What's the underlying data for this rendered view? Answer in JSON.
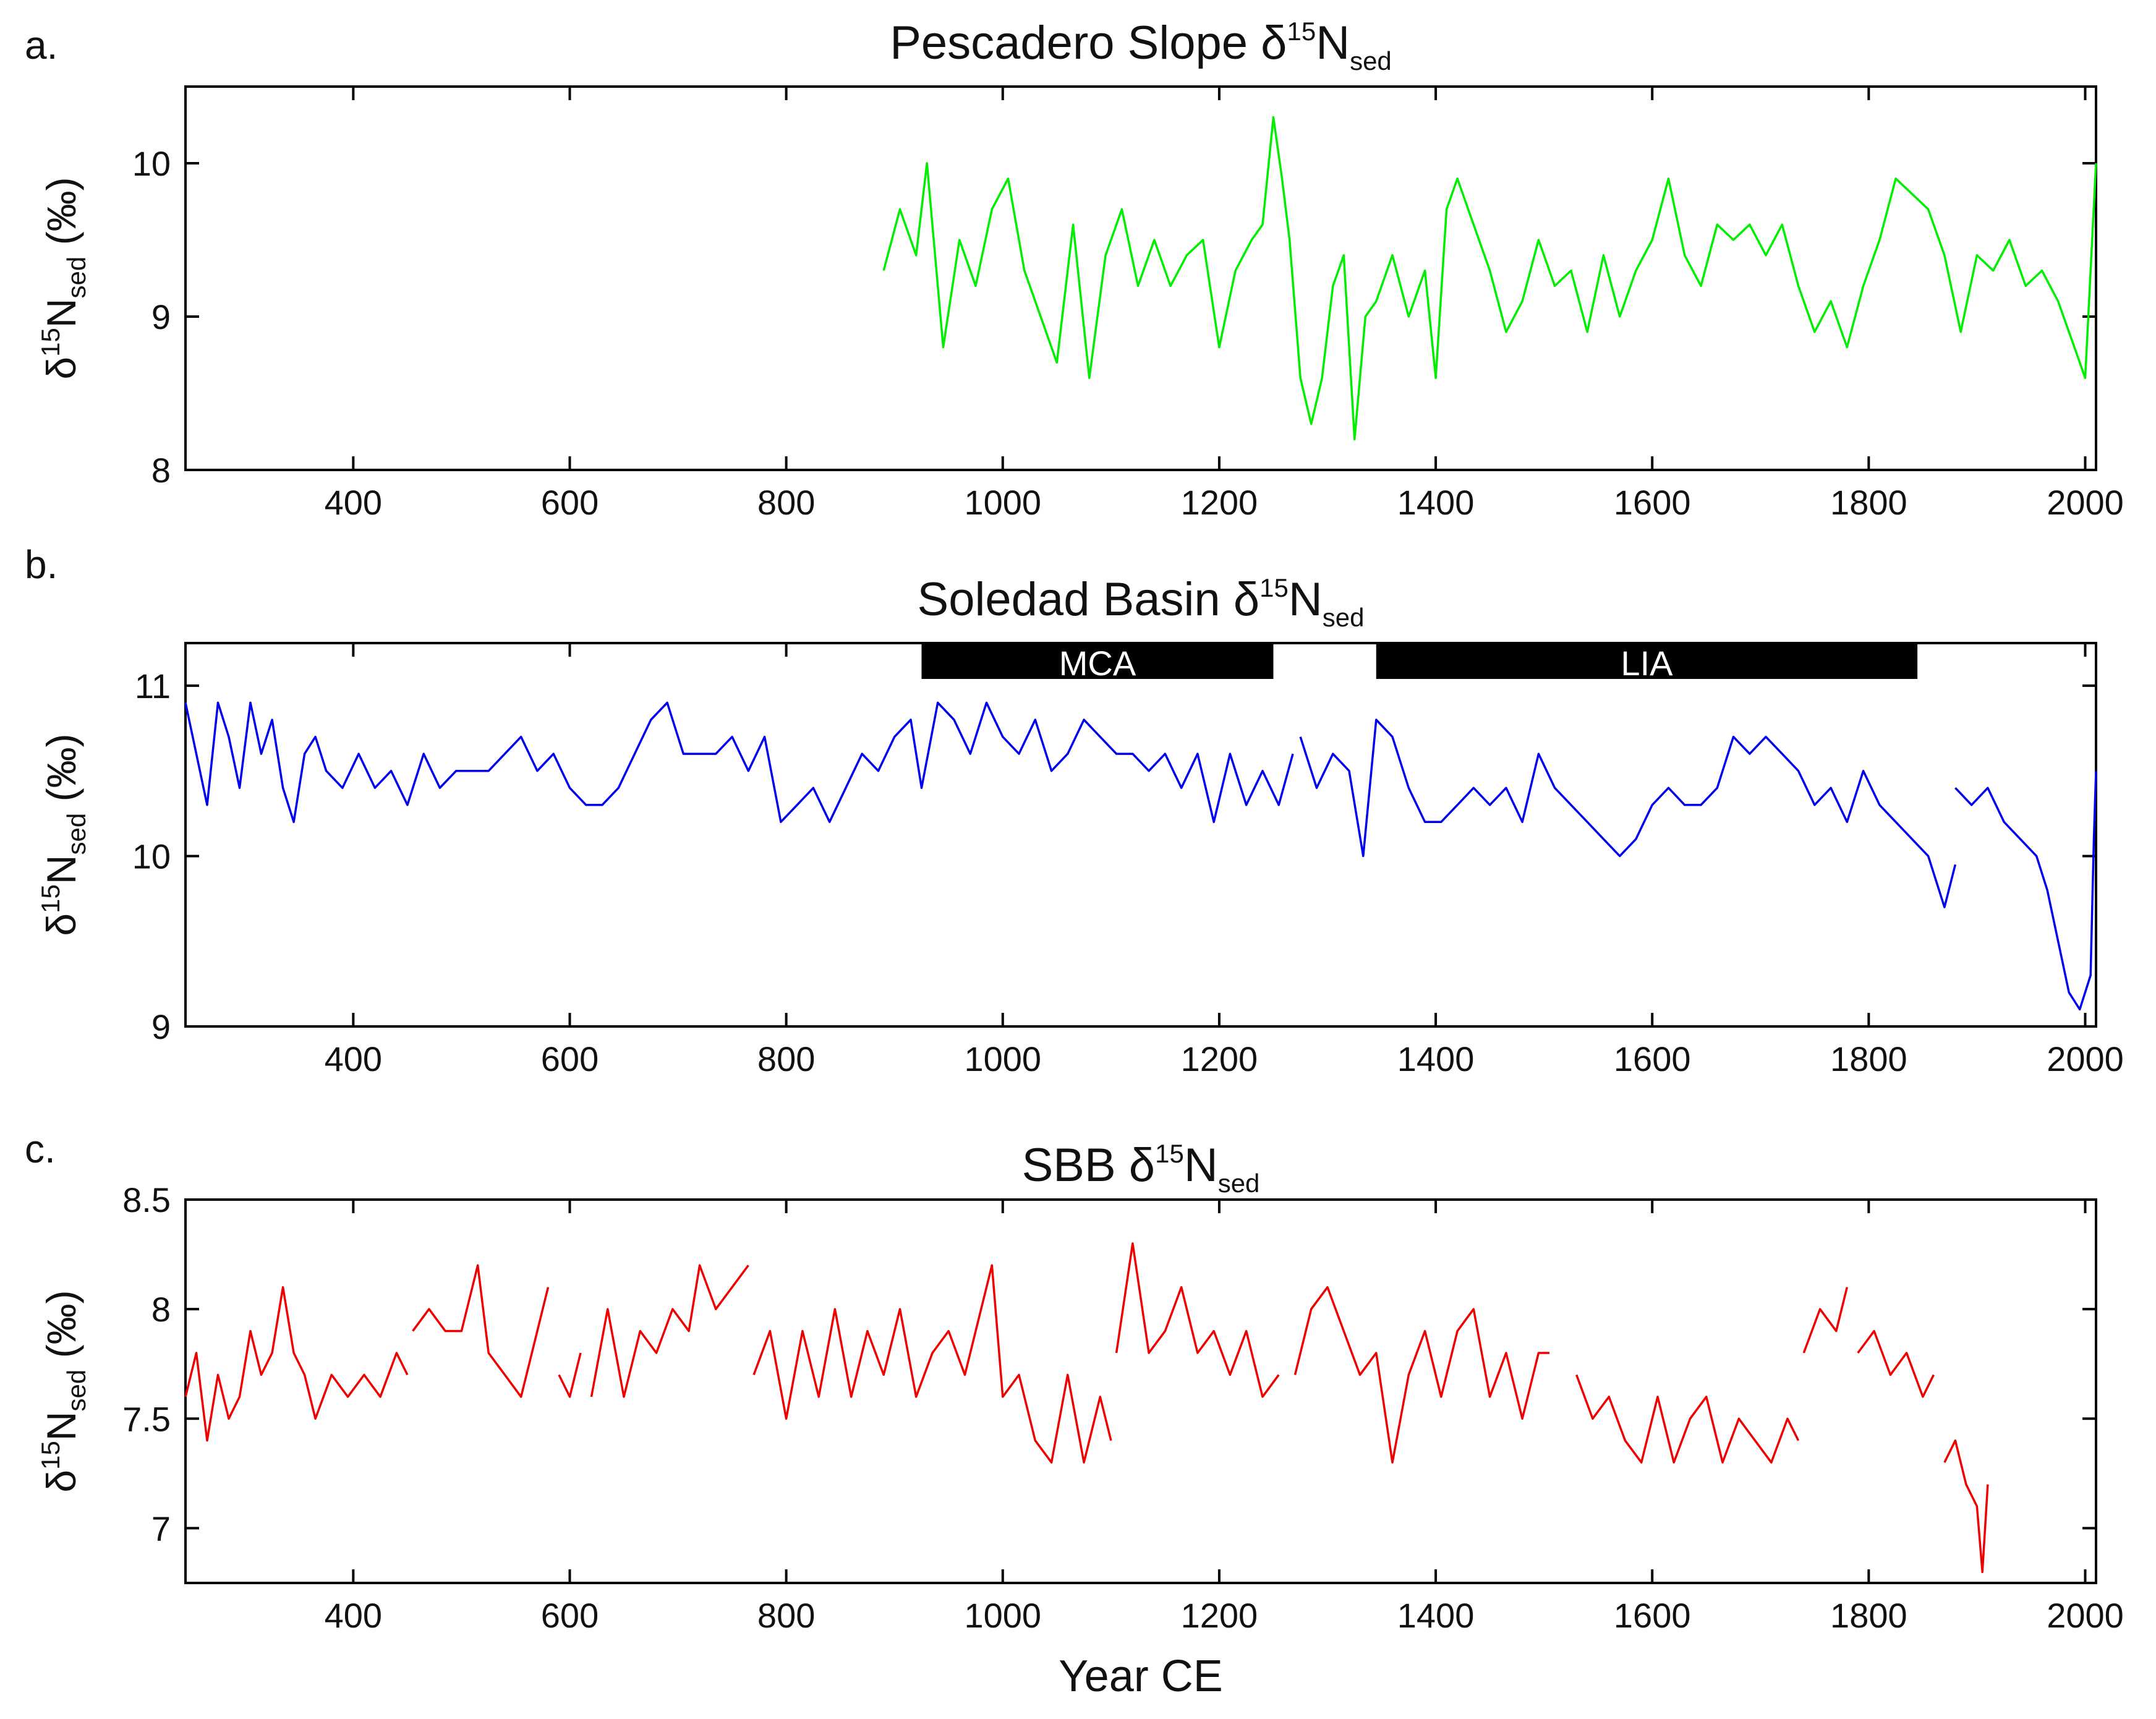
{
  "chart_data": [
    {
      "type": "line",
      "panel_letter": "a.",
      "title": "Pescadero Slope",
      "title_symbol": "δ",
      "title_sup": "15",
      "title_base": "N",
      "title_sub": "sed",
      "ylabel_symbol": "δ",
      "ylabel_sup": "15",
      "ylabel_base": "N",
      "ylabel_sub": "sed",
      "ylabel_unit": "(‰)",
      "xlim": [
        245,
        2010
      ],
      "ylim": [
        8,
        10.5
      ],
      "yticks": [
        8,
        9,
        10
      ],
      "ytick_labels": [
        "8",
        "9",
        "10"
      ],
      "xticks": [
        400,
        600,
        800,
        1000,
        1200,
        1400,
        1600,
        1800,
        2000
      ],
      "xtick_labels": [
        "400",
        "600",
        "800",
        "1000",
        "1200",
        "1400",
        "1600",
        "1800",
        "2000"
      ],
      "color": "#00ee00",
      "series": [
        {
          "name": "Pescadero Slope δ15Nsed",
          "segments": [
            {
              "x": [
                890,
                905,
                920,
                930,
                945,
                960,
                975,
                990,
                1005,
                1020,
                1035,
                1050,
                1065,
                1080,
                1095,
                1110,
                1125,
                1140,
                1155,
                1170,
                1185,
                1200,
                1215,
                1230,
                1240,
                1250,
                1258,
                1265,
                1275,
                1285,
                1295,
                1305,
                1315,
                1325,
                1335,
                1345,
                1360,
                1375,
                1390,
                1400,
                1410,
                1420,
                1435,
                1450,
                1465,
                1480,
                1495,
                1510,
                1525,
                1540,
                1555,
                1570,
                1585,
                1600,
                1615,
                1630,
                1645,
                1660,
                1675,
                1690,
                1705,
                1720,
                1735,
                1750,
                1765,
                1780,
                1795,
                1810,
                1825,
                1840,
                1855,
                1870,
                1885,
                1900,
                1915,
                1930,
                1945,
                1960,
                1975,
                1990,
                2000,
                2010
              ],
              "y": [
                9.3,
                9.7,
                9.4,
                10.0,
                8.8,
                9.5,
                9.2,
                9.7,
                9.9,
                9.3,
                9.0,
                8.7,
                9.6,
                8.6,
                9.4,
                9.7,
                9.2,
                9.5,
                9.2,
                9.4,
                9.5,
                8.8,
                9.3,
                9.5,
                9.6,
                10.3,
                9.9,
                9.5,
                8.6,
                8.3,
                8.6,
                9.2,
                9.4,
                8.2,
                9.0,
                9.1,
                9.4,
                9.0,
                9.3,
                8.6,
                9.7,
                9.9,
                9.6,
                9.3,
                8.9,
                9.1,
                9.5,
                9.2,
                9.3,
                8.9,
                9.4,
                9.0,
                9.3,
                9.5,
                9.9,
                9.4,
                9.2,
                9.6,
                9.5,
                9.6,
                9.4,
                9.6,
                9.2,
                8.9,
                9.1,
                8.8,
                9.2,
                9.5,
                9.9,
                9.8,
                9.7,
                9.4,
                8.9,
                9.4,
                9.3,
                9.5,
                9.2,
                9.3,
                9.1,
                8.8,
                8.6,
                10.0
              ]
            }
          ]
        }
      ]
    },
    {
      "type": "line",
      "panel_letter": "b.",
      "title": "Soledad Basin",
      "title_symbol": "δ",
      "title_sup": "15",
      "title_base": "N",
      "title_sub": "sed",
      "ylabel_symbol": "δ",
      "ylabel_sup": "15",
      "ylabel_base": "N",
      "ylabel_sub": "sed",
      "ylabel_unit": "(‰)",
      "xlim": [
        245,
        2010
      ],
      "ylim": [
        9,
        11.25
      ],
      "yticks": [
        9,
        10,
        11
      ],
      "ytick_labels": [
        "9",
        "10",
        "11"
      ],
      "xticks": [
        400,
        600,
        800,
        1000,
        1200,
        1400,
        1600,
        1800,
        2000
      ],
      "xtick_labels": [
        "400",
        "600",
        "800",
        "1000",
        "1200",
        "1400",
        "1600",
        "1800",
        "2000"
      ],
      "color": "#0000ee",
      "annotations": [
        {
          "label": "MCA",
          "x0": 925,
          "x1": 1250
        },
        {
          "label": "LIA",
          "x0": 1345,
          "x1": 1845
        }
      ],
      "series": [
        {
          "name": "Soledad Basin δ15Nsed",
          "segments": [
            {
              "x": [
                245,
                255,
                265,
                275,
                285,
                295,
                305,
                315,
                325,
                335,
                345,
                355,
                365,
                375,
                390,
                405,
                420,
                435,
                450,
                465,
                480,
                495,
                510,
                525,
                540,
                555,
                570,
                585,
                600,
                615,
                630,
                645,
                660,
                675,
                690,
                705,
                720,
                735,
                750,
                765,
                780,
                795,
                810,
                825,
                840,
                855,
                870,
                885,
                900,
                915,
                925,
                940,
                955,
                970,
                985,
                1000,
                1015,
                1030,
                1045,
                1060,
                1075,
                1090,
                1105,
                1120,
                1135,
                1150,
                1165,
                1180,
                1195,
                1210,
                1225,
                1240,
                1255,
                1268
              ],
              "y": [
                10.9,
                10.6,
                10.3,
                10.9,
                10.7,
                10.4,
                10.9,
                10.6,
                10.8,
                10.4,
                10.2,
                10.6,
                10.7,
                10.5,
                10.4,
                10.6,
                10.4,
                10.5,
                10.3,
                10.6,
                10.4,
                10.5,
                10.5,
                10.5,
                10.6,
                10.7,
                10.5,
                10.6,
                10.4,
                10.3,
                10.3,
                10.4,
                10.6,
                10.8,
                10.9,
                10.6,
                10.6,
                10.6,
                10.7,
                10.5,
                10.7,
                10.2,
                10.3,
                10.4,
                10.2,
                10.4,
                10.6,
                10.5,
                10.7,
                10.8,
                10.4,
                10.9,
                10.8,
                10.6,
                10.9,
                10.7,
                10.6,
                10.8,
                10.5,
                10.6,
                10.8,
                10.7,
                10.6,
                10.6,
                10.5,
                10.6,
                10.4,
                10.6,
                10.2,
                10.6,
                10.3,
                10.5,
                10.3,
                10.6
              ]
            },
            {
              "x": [
                1275,
                1290,
                1305,
                1320,
                1333,
                1345,
                1360,
                1375,
                1390,
                1405,
                1420,
                1435,
                1450,
                1465,
                1480,
                1495,
                1510,
                1525,
                1540,
                1555,
                1570,
                1585,
                1600,
                1615,
                1630,
                1645,
                1660,
                1675,
                1690,
                1705,
                1720,
                1735,
                1750,
                1765,
                1780,
                1795,
                1810,
                1825,
                1840,
                1855,
                1870,
                1880
              ],
              "y": [
                10.7,
                10.4,
                10.6,
                10.5,
                10.0,
                10.8,
                10.7,
                10.4,
                10.2,
                10.2,
                10.3,
                10.4,
                10.3,
                10.4,
                10.2,
                10.6,
                10.4,
                10.3,
                10.2,
                10.1,
                10.0,
                10.1,
                10.3,
                10.4,
                10.3,
                10.3,
                10.4,
                10.7,
                10.6,
                10.7,
                10.6,
                10.5,
                10.3,
                10.4,
                10.2,
                10.5,
                10.3,
                10.2,
                10.1,
                10.0,
                9.7,
                9.95
              ]
            },
            {
              "x": [
                1880,
                1895,
                1910,
                1925,
                1940,
                1955,
                1965,
                1975,
                1985,
                1995,
                2005,
                2008,
                2010
              ],
              "y": [
                10.4,
                10.3,
                10.4,
                10.2,
                10.1,
                10.0,
                9.8,
                9.5,
                9.2,
                9.1,
                9.3,
                10.1,
                10.5
              ]
            }
          ]
        }
      ]
    },
    {
      "type": "line",
      "panel_letter": "c.",
      "title": "SBB",
      "title_symbol": "δ",
      "title_sup": "15",
      "title_base": "N",
      "title_sub": "sed",
      "ylabel_symbol": "δ",
      "ylabel_sup": "15",
      "ylabel_base": "N",
      "ylabel_sub": "sed",
      "ylabel_unit": "(‰)",
      "xlabel": "Year CE",
      "xlim": [
        245,
        2010
      ],
      "ylim": [
        6.75,
        8.5
      ],
      "yticks": [
        7,
        7.5,
        8,
        8.5
      ],
      "ytick_labels": [
        "7",
        "7.5",
        "8",
        "8.5"
      ],
      "xticks": [
        400,
        600,
        800,
        1000,
        1200,
        1400,
        1600,
        1800,
        2000
      ],
      "xtick_labels": [
        "400",
        "600",
        "800",
        "1000",
        "1200",
        "1400",
        "1600",
        "1800",
        "2000"
      ],
      "color": "#ee0000",
      "series": [
        {
          "name": "SBB δ15Nsed",
          "segments": [
            {
              "x": [
                245,
                255,
                265,
                275,
                285,
                295,
                305,
                315,
                325,
                335,
                345,
                355,
                365,
                380,
                395,
                410,
                425,
                440,
                450
              ],
              "y": [
                7.6,
                7.8,
                7.4,
                7.7,
                7.5,
                7.6,
                7.9,
                7.7,
                7.8,
                8.1,
                7.8,
                7.7,
                7.5,
                7.7,
                7.6,
                7.7,
                7.6,
                7.8,
                7.7
              ]
            },
            {
              "x": [
                455,
                470,
                485,
                500,
                515,
                525,
                540,
                555,
                570,
                580
              ],
              "y": [
                7.9,
                8.0,
                7.9,
                7.9,
                8.2,
                7.8,
                7.7,
                7.6,
                7.9,
                8.1
              ]
            },
            {
              "x": [
                590,
                600,
                610
              ],
              "y": [
                7.7,
                7.6,
                7.8
              ]
            },
            {
              "x": [
                620,
                635,
                650,
                665,
                680,
                695,
                710,
                720,
                735,
                750,
                765
              ],
              "y": [
                7.6,
                8.0,
                7.6,
                7.9,
                7.8,
                8.0,
                7.9,
                8.2,
                8.0,
                8.1,
                8.2
              ]
            },
            {
              "x": [
                770,
                785,
                800,
                815,
                830,
                845,
                860,
                875,
                890,
                905,
                920,
                935,
                950,
                965,
                980,
                990,
                1000,
                1015,
                1030,
                1045,
                1060,
                1075,
                1090,
                1100
              ],
              "y": [
                7.7,
                7.9,
                7.5,
                7.9,
                7.6,
                8.0,
                7.6,
                7.9,
                7.7,
                8.0,
                7.6,
                7.8,
                7.9,
                7.7,
                8.0,
                8.2,
                7.6,
                7.7,
                7.4,
                7.3,
                7.7,
                7.3,
                7.6,
                7.4
              ]
            },
            {
              "x": [
                1105,
                1120,
                1135,
                1150,
                1165,
                1180,
                1195,
                1210,
                1225,
                1240,
                1255
              ],
              "y": [
                7.8,
                8.3,
                7.8,
                7.9,
                8.1,
                7.8,
                7.9,
                7.7,
                7.9,
                7.6,
                7.7
              ]
            },
            {
              "x": [
                1270,
                1285,
                1300,
                1315,
                1330,
                1345,
                1360,
                1375,
                1390,
                1405,
                1420,
                1435,
                1450,
                1465,
                1480,
                1495,
                1505
              ],
              "y": [
                7.7,
                8.0,
                8.1,
                7.9,
                7.7,
                7.8,
                7.3,
                7.7,
                7.9,
                7.6,
                7.9,
                8.0,
                7.6,
                7.8,
                7.5,
                7.8,
                7.8
              ]
            },
            {
              "x": [
                1530,
                1545,
                1560,
                1575,
                1590,
                1605,
                1620,
                1635,
                1650,
                1665,
                1680,
                1695,
                1710,
                1725,
                1735
              ],
              "y": [
                7.7,
                7.5,
                7.6,
                7.4,
                7.3,
                7.6,
                7.3,
                7.5,
                7.6,
                7.3,
                7.5,
                7.4,
                7.3,
                7.5,
                7.4
              ]
            },
            {
              "x": [
                1740,
                1755,
                1770,
                1780
              ],
              "y": [
                7.8,
                8.0,
                7.9,
                8.1
              ]
            },
            {
              "x": [
                1790,
                1805,
                1820,
                1835,
                1850,
                1860
              ],
              "y": [
                7.8,
                7.9,
                7.7,
                7.8,
                7.6,
                7.7
              ]
            },
            {
              "x": [
                1870,
                1880,
                1890,
                1900,
                1905,
                1910
              ],
              "y": [
                7.3,
                7.4,
                7.2,
                7.1,
                6.8,
                7.2
              ]
            }
          ]
        }
      ]
    }
  ]
}
